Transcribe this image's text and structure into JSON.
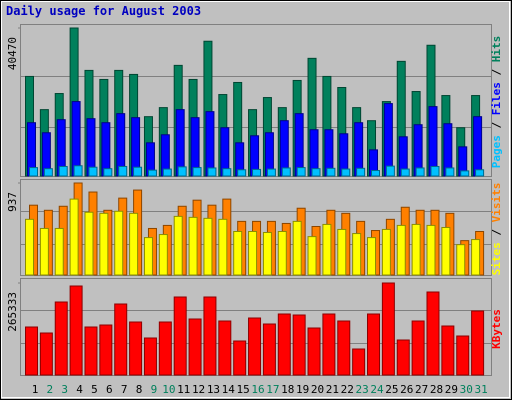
{
  "chart_data": {
    "type": "bar",
    "title": "Daily usage for August 2003",
    "categories": [
      "1",
      "2",
      "3",
      "4",
      "5",
      "6",
      "7",
      "8",
      "9",
      "10",
      "11",
      "12",
      "13",
      "14",
      "15",
      "16",
      "17",
      "18",
      "19",
      "20",
      "21",
      "22",
      "23",
      "24",
      "25",
      "26",
      "27",
      "28",
      "29",
      "30",
      "31"
    ],
    "category_colors": [
      "#000000",
      "#00805c",
      "#00805c",
      "#000000",
      "#000000",
      "#000000",
      "#000000",
      "#000000",
      "#00805c",
      "#00805c",
      "#000000",
      "#000000",
      "#000000",
      "#000000",
      "#000000",
      "#00805c",
      "#00805c",
      "#000000",
      "#000000",
      "#000000",
      "#000000",
      "#000000",
      "#00805c",
      "#00805c",
      "#000000",
      "#000000",
      "#000000",
      "#000000",
      "#000000",
      "#00805c",
      "#00805c"
    ],
    "legend_separator": " / ",
    "panels": [
      {
        "ylim": [
          0,
          40470
        ],
        "yticks": [
          40470
        ],
        "series": [
          {
            "name": "Hits",
            "color": "#00805c",
            "values": [
              27225,
              18150,
              22550,
              40470,
              28875,
              26400,
              28875,
              27775,
              16225,
              18700,
              30250,
              26400,
              36850,
              22275,
              25575,
              18150,
              21450,
              18700,
              26125,
              32175,
              27225,
              24200,
              18700,
              15125,
              20350,
              31350,
              23100,
              35750,
              22000,
              13200,
              22000
            ]
          },
          {
            "name": "Files",
            "color": "#0000ff",
            "values": [
              14575,
              11825,
              15400,
              20350,
              15675,
              14575,
              17050,
              15950,
              9075,
              11275,
              18150,
              15950,
              17600,
              13200,
              9075,
              11000,
              11825,
              15125,
              17050,
              12650,
              12650,
              11550,
              14575,
              7150,
              19800,
              10725,
              14025,
              18975,
              14300,
              7975,
              16225
            ]
          },
          {
            "name": "Pages",
            "color": "#00c0ff",
            "values": [
              2300,
              2000,
              2600,
              2800,
              2400,
              2000,
              2600,
              2400,
              1600,
              1900,
              2500,
              2300,
              2200,
              2000,
              1700,
              1800,
              1900,
              2200,
              2300,
              2000,
              2100,
              1900,
              2100,
              1500,
              2700,
              1900,
              2200,
              2600,
              2200,
              1400,
              1700
            ]
          }
        ]
      },
      {
        "ylim": [
          0,
          937
        ],
        "yticks": [
          937
        ],
        "series": [
          {
            "name": "Visits",
            "color": "#ff8000",
            "values": [
              711,
              659,
              700,
              937,
              845,
              659,
              783,
              865,
              474,
              505,
              700,
              762,
              711,
              773,
              546,
              546,
              546,
              525,
              680,
              494,
              659,
              628,
              546,
              453,
              567,
              690,
              659,
              659,
              628,
              350,
              443
            ]
          },
          {
            "name": "Sites",
            "color": "#ffff00",
            "values": [
              567,
              474,
              474,
              773,
              639,
              628,
              649,
              628,
              381,
              412,
              597,
              587,
              577,
              567,
              443,
              443,
              433,
              443,
              546,
              391,
              515,
              464,
              422,
              381,
              464,
              505,
              515,
              505,
              484,
              309,
              361
            ]
          }
        ]
      },
      {
        "ylim": [
          0,
          265333
        ],
        "yticks": [
          265333
        ],
        "series": [
          {
            "name": "KBytes",
            "color": "#ff0000",
            "values": [
              138432,
              121128,
              210532,
              256676,
              138432,
              144200,
              204764,
              152852,
              106708,
              152852,
              224952,
              161504,
              224952,
              155736,
              98056,
              164388,
              147084,
              175924,
              173040,
              135548,
              175924,
              155736,
              74984,
              175924,
              265333,
              100940,
              155736,
              239372,
              141316,
              112476,
              184576
            ]
          }
        ]
      }
    ]
  }
}
